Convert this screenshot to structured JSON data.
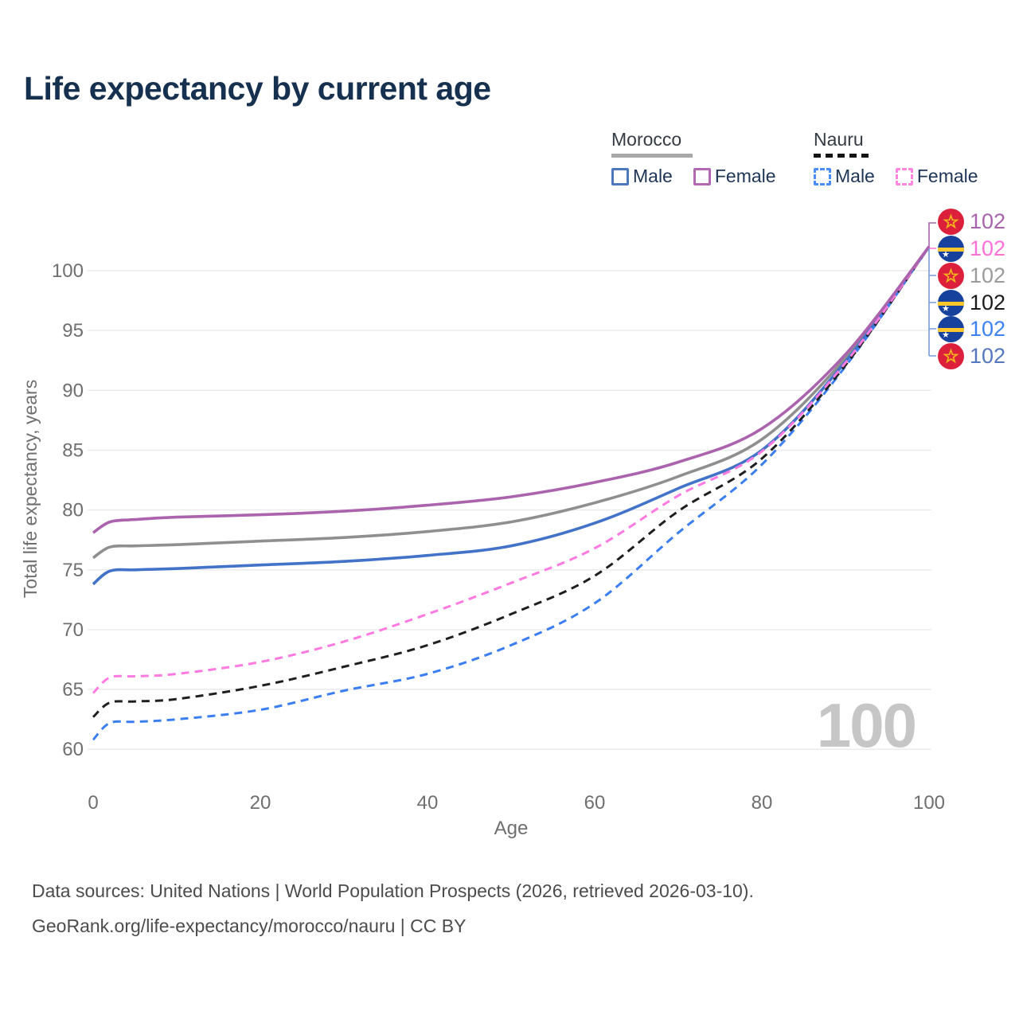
{
  "title": "Life expectancy by current age",
  "legend": {
    "groups": [
      {
        "country": "Morocco",
        "line_style": "solid",
        "underline_color": "#a8a8a8",
        "items": [
          {
            "label": "Male",
            "color": "#4d79bc"
          },
          {
            "label": "Female",
            "color": "#b169b1"
          }
        ]
      },
      {
        "country": "Nauru",
        "line_style": "dashed",
        "underline_color": "#141414",
        "items": [
          {
            "label": "Male",
            "color": "#4b8df8"
          },
          {
            "label": "Female",
            "color": "#ff85e3"
          }
        ]
      }
    ]
  },
  "chart_data": {
    "type": "line",
    "title": "Life expectancy by current age",
    "xlabel": "Age",
    "ylabel": "Total life expectancy, years",
    "xlim": [
      0,
      100
    ],
    "ylim": [
      60,
      103
    ],
    "x_ticks": [
      0,
      20,
      40,
      60,
      80,
      100
    ],
    "y_ticks": [
      60,
      65,
      70,
      75,
      80,
      85,
      90,
      95,
      100
    ],
    "grid": "horizontal",
    "legend_position": "top-right",
    "x": [
      0,
      2,
      5,
      10,
      20,
      30,
      40,
      50,
      60,
      70,
      80,
      90,
      100
    ],
    "series": [
      {
        "name": "Morocco Female",
        "country": "Morocco",
        "sex": "Female",
        "color": "#ab63ae",
        "dash": "solid",
        "values": [
          78.1,
          79.0,
          79.2,
          79.4,
          79.6,
          79.9,
          80.4,
          81.1,
          82.3,
          84.0,
          86.8,
          93.0,
          102
        ]
      },
      {
        "name": "Morocco Both sexes",
        "country": "Morocco",
        "sex": "Both",
        "color": "#8f8f8f",
        "dash": "solid",
        "values": [
          76.0,
          76.9,
          77.0,
          77.1,
          77.4,
          77.7,
          78.2,
          79.0,
          80.6,
          82.8,
          85.9,
          92.7,
          102
        ]
      },
      {
        "name": "Morocco Male",
        "country": "Morocco",
        "sex": "Male",
        "color": "#4273c8",
        "dash": "solid",
        "values": [
          73.8,
          74.9,
          75.0,
          75.1,
          75.4,
          75.7,
          76.2,
          77.0,
          78.9,
          81.8,
          85.0,
          92.4,
          102
        ]
      },
      {
        "name": "Nauru Female",
        "country": "Nauru",
        "sex": "Female",
        "color": "#ff7ae0",
        "dash": "dashed",
        "values": [
          64.7,
          66.0,
          66.1,
          66.3,
          67.3,
          69.0,
          71.3,
          73.9,
          76.8,
          81.2,
          84.9,
          92.3,
          102
        ]
      },
      {
        "name": "Nauru Both sexes",
        "country": "Nauru",
        "sex": "Both",
        "color": "#1f1f1f",
        "dash": "dashed",
        "values": [
          62.7,
          63.9,
          64.0,
          64.2,
          65.3,
          66.9,
          68.7,
          71.3,
          74.5,
          79.9,
          84.3,
          92.1,
          102
        ]
      },
      {
        "name": "Nauru Male",
        "country": "Nauru",
        "sex": "Male",
        "color": "#3b7ef2",
        "dash": "dashed",
        "values": [
          60.8,
          62.2,
          62.3,
          62.5,
          63.3,
          64.9,
          66.3,
          68.7,
          72.2,
          78.1,
          83.8,
          92.0,
          102
        ]
      }
    ]
  },
  "end_labels": [
    {
      "series": "Morocco Female",
      "flag": "morocco",
      "value": "102",
      "color": "#a763ab"
    },
    {
      "series": "Nauru Female",
      "flag": "nauru",
      "value": "102",
      "color": "#ff70d9"
    },
    {
      "series": "Morocco Both sexes",
      "flag": "morocco",
      "value": "102",
      "color": "#9b9b9b"
    },
    {
      "series": "Nauru Both sexes",
      "flag": "nauru",
      "value": "102",
      "color": "#1c1c1c"
    },
    {
      "series": "Nauru Male",
      "flag": "nauru",
      "value": "102",
      "color": "#3d82f2"
    },
    {
      "series": "Morocco Male",
      "flag": "morocco",
      "value": "102",
      "color": "#5577c0"
    }
  ],
  "age_counter": "100",
  "footer": {
    "line1": "Data sources: United Nations | World Population Prospects (2026, retrieved 2026-03-10).",
    "line2": "GeoRank.org/life-expectancy/morocco/nauru | CC BY"
  },
  "colors": {
    "title": "#16314f",
    "axis_text": "#6f6f6f",
    "gridline": "#eaeaea",
    "watermark": "#c6c6c6",
    "connector_bracket": "#7b9bd8"
  }
}
